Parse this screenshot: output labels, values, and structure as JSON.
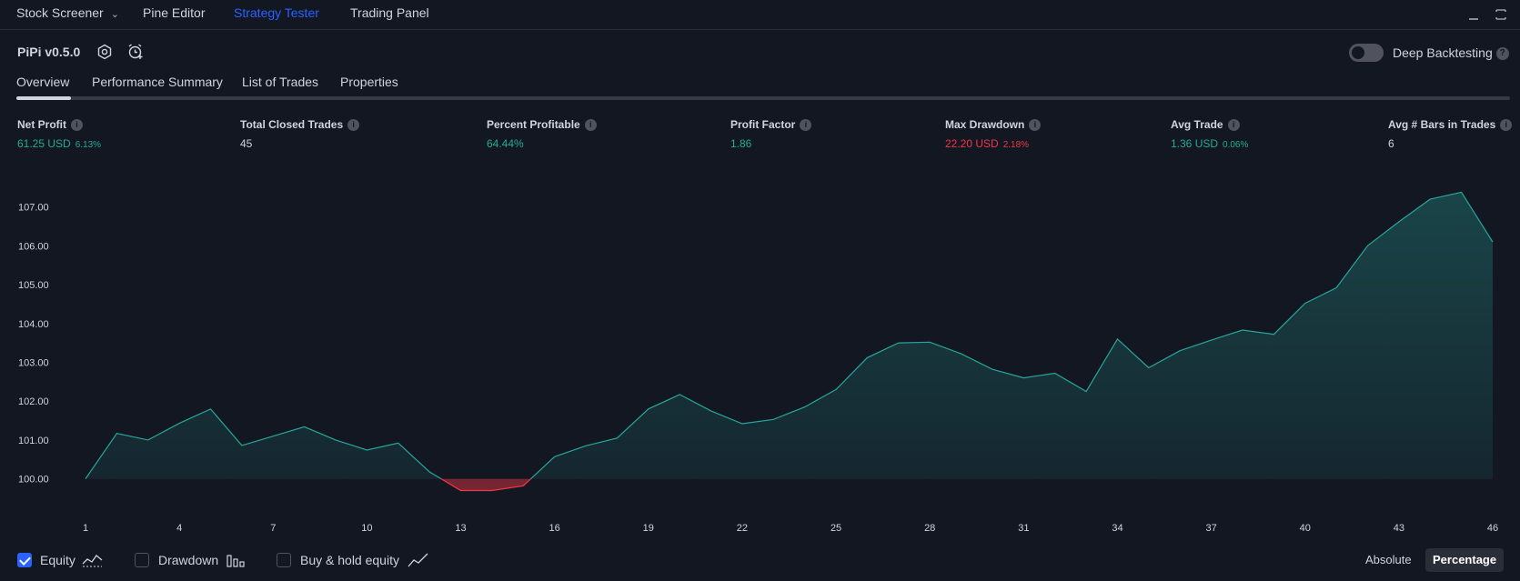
{
  "top_tabs": [
    {
      "label": "Stock Screener"
    },
    {
      "label": "Pine Editor"
    },
    {
      "label": "Strategy Tester"
    },
    {
      "label": "Trading Panel"
    }
  ],
  "strategy": {
    "name": "PiPi v0.5.0"
  },
  "deep_backtesting": {
    "label": "Deep Backtesting",
    "help": "?",
    "enabled": false
  },
  "sub_tabs": [
    {
      "label": "Overview"
    },
    {
      "label": "Performance Summary"
    },
    {
      "label": "List of Trades"
    },
    {
      "label": "Properties"
    }
  ],
  "metrics": [
    {
      "label": "Net Profit",
      "value": "61.25 USD",
      "sub": "6.13%",
      "color": "#22ab94"
    },
    {
      "label": "Total Closed Trades",
      "value": "45",
      "sub": "",
      "color": "#d1d4dc"
    },
    {
      "label": "Percent Profitable",
      "value": "64.44%",
      "sub": "",
      "color": "#22ab94"
    },
    {
      "label": "Profit Factor",
      "value": "1.86",
      "sub": "",
      "color": "#22ab94"
    },
    {
      "label": "Max Drawdown",
      "value": "22.20 USD",
      "sub": "2.18%",
      "color": "#f23645"
    },
    {
      "label": "Avg Trade",
      "value": "1.36 USD",
      "sub": "0.06%",
      "color": "#22ab94"
    },
    {
      "label": "Avg # Bars in Trades",
      "value": "6",
      "sub": "",
      "color": "#d1d4dc"
    }
  ],
  "chart_data": {
    "type": "area",
    "x": [
      1,
      2,
      3,
      4,
      5,
      6,
      7,
      8,
      9,
      10,
      11,
      12,
      13,
      14,
      15,
      16,
      17,
      18,
      19,
      20,
      21,
      22,
      23,
      24,
      25,
      26,
      27,
      28,
      29,
      30,
      31,
      32,
      33,
      34,
      35,
      36,
      37,
      38,
      39,
      40,
      41,
      42,
      43,
      44,
      45,
      46
    ],
    "values": [
      100.0,
      101.17,
      101.0,
      101.43,
      101.8,
      100.86,
      101.1,
      101.34,
      101.0,
      100.74,
      100.92,
      100.18,
      99.7,
      99.7,
      99.82,
      100.57,
      100.85,
      101.05,
      101.8,
      102.17,
      101.75,
      101.42,
      101.53,
      101.85,
      102.3,
      103.12,
      103.5,
      103.52,
      103.22,
      102.82,
      102.6,
      102.72,
      102.25,
      103.6,
      102.86,
      103.3,
      103.57,
      103.83,
      103.72,
      104.52,
      104.92,
      106.0,
      106.62,
      107.2,
      107.38,
      106.1
    ],
    "baseline": 100.0,
    "y_ticks": [
      "107.00",
      "106.00",
      "105.00",
      "104.00",
      "103.00",
      "102.00",
      "101.00",
      "100.00"
    ],
    "y_tick_values": [
      107,
      106,
      105,
      104,
      103,
      102,
      101,
      100
    ],
    "x_ticks": [
      "1",
      "4",
      "7",
      "10",
      "13",
      "16",
      "19",
      "22",
      "25",
      "28",
      "31",
      "34",
      "37",
      "40",
      "43",
      "46"
    ],
    "x_tick_values": [
      1,
      4,
      7,
      10,
      13,
      16,
      19,
      22,
      25,
      28,
      31,
      34,
      37,
      40,
      43,
      46
    ],
    "ylim": [
      99.5,
      107.6
    ],
    "colors": {
      "positive": "#26a69a",
      "negative": "#f23645"
    },
    "grid": false
  },
  "legend": [
    {
      "label": "Equity",
      "checked": true
    },
    {
      "label": "Drawdown",
      "checked": false
    },
    {
      "label": "Buy & hold equity",
      "checked": false
    }
  ],
  "mode_buttons": [
    {
      "label": "Absolute",
      "active": false
    },
    {
      "label": "Percentage",
      "active": true
    }
  ]
}
